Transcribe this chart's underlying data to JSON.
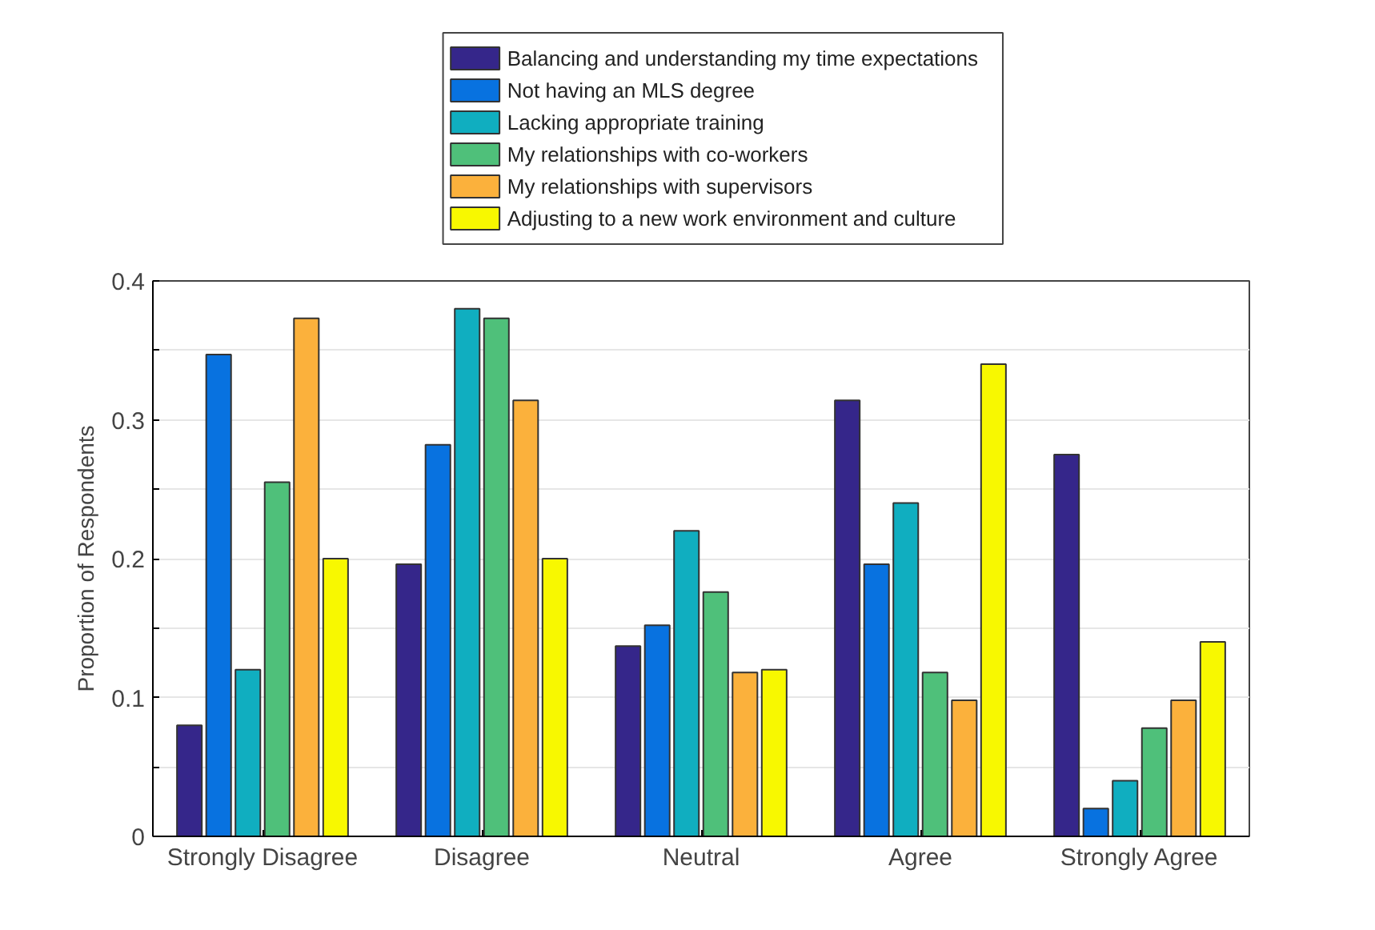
{
  "chart_data": {
    "type": "bar",
    "ylabel": "Proportion of Respondents",
    "categories": [
      "Strongly Disagree",
      "Disagree",
      "Neutral",
      "Agree",
      "Strongly Agree"
    ],
    "series": [
      {
        "name": "Balancing and understanding my time expectations",
        "color": "#35268a",
        "values": [
          0.08,
          0.196,
          0.137,
          0.314,
          0.275
        ]
      },
      {
        "name": "Not having an MLS degree",
        "color": "#0872e0",
        "values": [
          0.347,
          0.282,
          0.152,
          0.196,
          0.02
        ]
      },
      {
        "name": "Lacking appropriate training",
        "color": "#10aec0",
        "values": [
          0.12,
          0.38,
          0.22,
          0.24,
          0.04
        ]
      },
      {
        "name": "My relationships with co-workers",
        "color": "#4fc07a",
        "values": [
          0.255,
          0.373,
          0.176,
          0.118,
          0.078
        ]
      },
      {
        "name": "My relationships with supervisors",
        "color": "#fbb13c",
        "values": [
          0.373,
          0.314,
          0.118,
          0.098,
          0.098
        ]
      },
      {
        "name": "Adjusting to a new work environment and culture",
        "color": "#f8f800",
        "values": [
          0.2,
          0.2,
          0.12,
          0.34,
          0.14
        ]
      }
    ],
    "ylim": [
      0,
      0.4
    ],
    "yticks": [
      0,
      {
        "value": 0.05,
        "label": null
      },
      0.1,
      {
        "value": 0.15,
        "label": null
      },
      0.2,
      {
        "value": 0.25,
        "label": null
      },
      0.3,
      {
        "value": 0.35,
        "label": null
      },
      0.4
    ],
    "grid": "y",
    "legend": "top"
  }
}
